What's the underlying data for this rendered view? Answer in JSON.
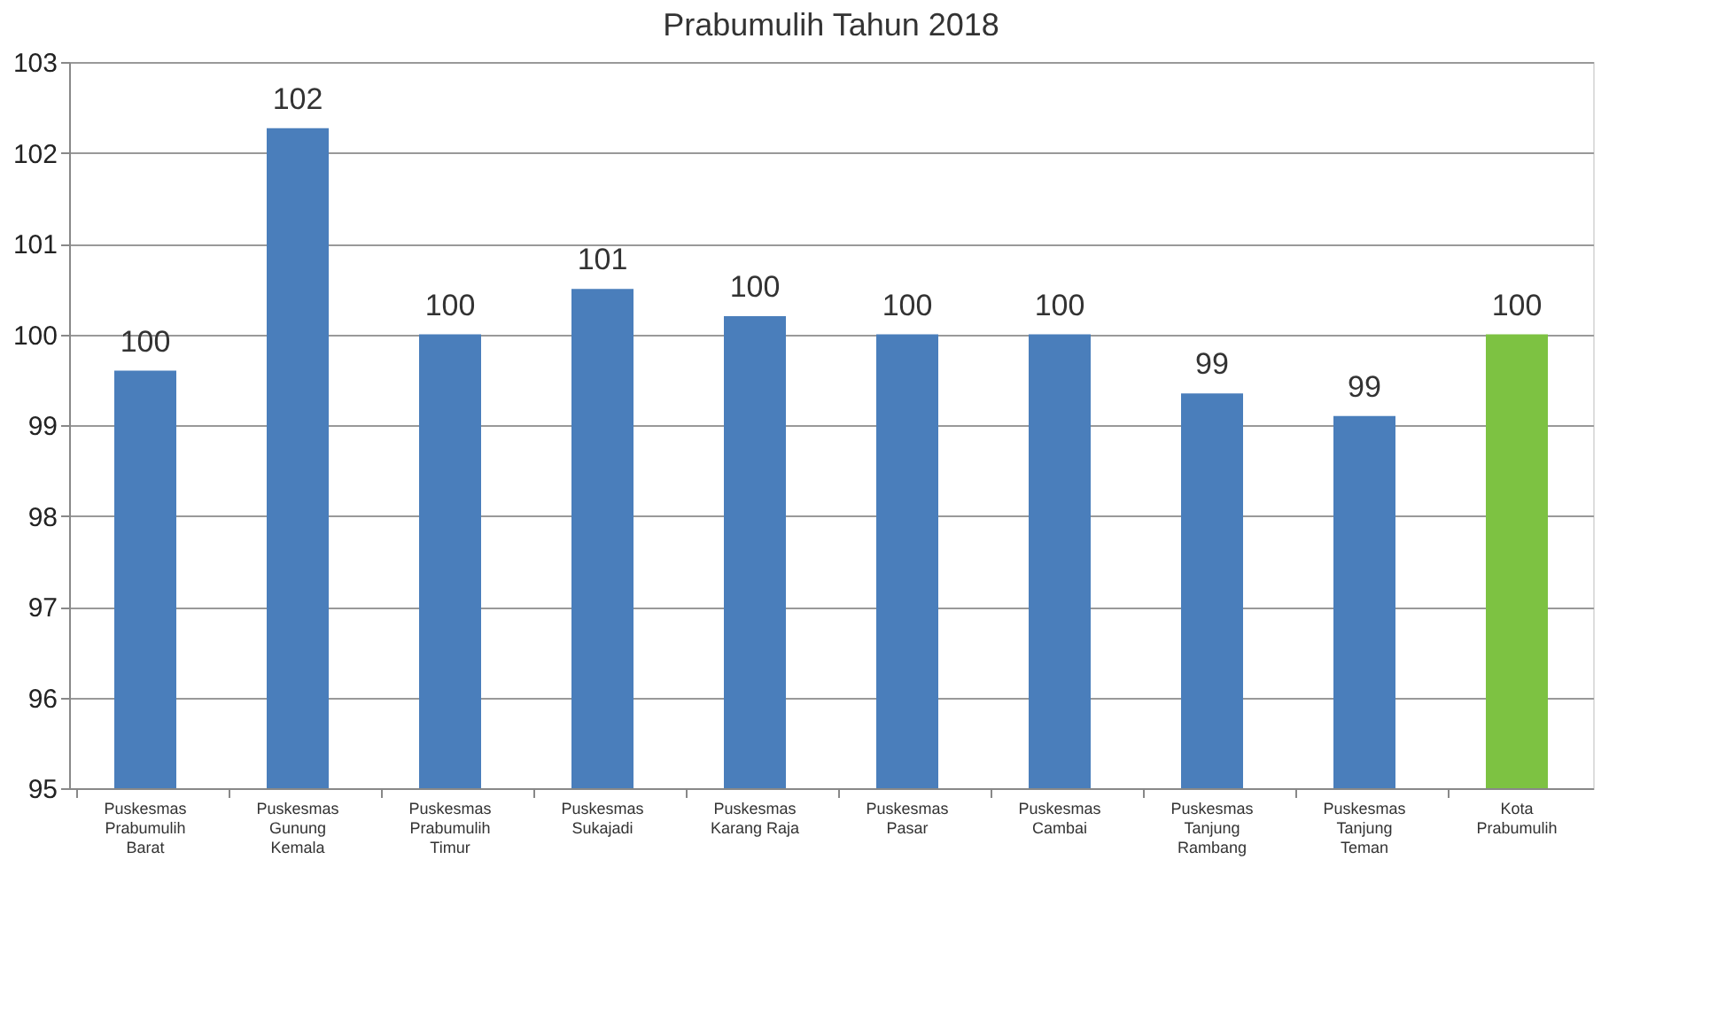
{
  "chart_data": {
    "type": "bar",
    "title": "Prabumulih Tahun 2018",
    "categories": [
      "Puskesmas\nPrabumulih\nBarat",
      "Puskesmas\nGunung\nKemala",
      "Puskesmas\nPrabumulih\nTimur",
      "Puskesmas\nSukajadi",
      "Puskesmas\nKarang Raja",
      "Puskesmas\nPasar",
      "Puskesmas\nCambai",
      "Puskesmas\nTanjung\nRambang",
      "Puskesmas\nTanjung\nTeman",
      "Kota\nPrabumulih"
    ],
    "values": [
      99.6,
      102.27,
      100.0,
      100.5,
      100.2,
      100.0,
      100.0,
      99.35,
      99.1,
      100.0
    ],
    "colors": [
      "#4a7ebb",
      "#4a7ebb",
      "#4a7ebb",
      "#4a7ebb",
      "#4a7ebb",
      "#4a7ebb",
      "#4a7ebb",
      "#4a7ebb",
      "#4a7ebb",
      "#7dc242"
    ],
    "value_labels": [
      "100",
      "102",
      "100",
      "101",
      "100",
      "100",
      "100",
      "99",
      "99",
      "100"
    ],
    "ylim": [
      95,
      103
    ],
    "yticks": [
      95,
      96,
      97,
      98,
      99,
      100,
      101,
      102,
      103
    ],
    "grid": "y"
  }
}
